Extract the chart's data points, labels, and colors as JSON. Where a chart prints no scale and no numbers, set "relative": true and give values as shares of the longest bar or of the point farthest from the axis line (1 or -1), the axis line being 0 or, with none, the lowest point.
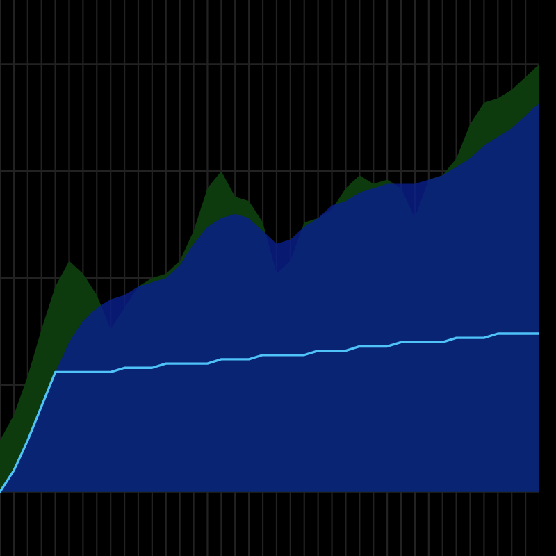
{
  "chart_data": {
    "type": "area",
    "relative": true,
    "grid": true,
    "categories": [
      null,
      null,
      null,
      null,
      null,
      null,
      null,
      null,
      null,
      null,
      null,
      null,
      null,
      null,
      null,
      null,
      null,
      null,
      null,
      null,
      null,
      null,
      null,
      null,
      null,
      null,
      null,
      null,
      null,
      null,
      null,
      null,
      null,
      null,
      null,
      null,
      null,
      null,
      null,
      null
    ],
    "series": [
      {
        "color": "#0d3b0d",
        "values": [
          0.12,
          0.18,
          0.27,
          0.38,
          0.48,
          0.54,
          0.51,
          0.46,
          0.38,
          0.43,
          0.48,
          0.5,
          0.51,
          0.54,
          0.61,
          0.71,
          0.75,
          0.69,
          0.68,
          0.63,
          0.51,
          0.54,
          0.63,
          0.64,
          0.66,
          0.71,
          0.74,
          0.72,
          0.73,
          0.71,
          0.64,
          0.73,
          0.74,
          0.78,
          0.86,
          0.91,
          0.92,
          0.94,
          0.97,
          1
        ]
      },
      {
        "color": "#0a1f8f",
        "values": [
          0,
          0.05,
          0.12,
          0.2,
          0.28,
          0.35,
          0.4,
          0.43,
          0.45,
          0.46,
          0.48,
          0.49,
          0.5,
          0.53,
          0.58,
          0.62,
          0.64,
          0.65,
          0.64,
          0.61,
          0.58,
          0.59,
          0.62,
          0.64,
          0.67,
          0.68,
          0.7,
          0.71,
          0.72,
          0.72,
          0.72,
          0.73,
          0.74,
          0.76,
          0.78,
          0.81,
          0.83,
          0.85,
          0.88,
          0.91
        ]
      },
      {
        "type": "line",
        "color": "#4fc3f7",
        "values": [
          0,
          0.05,
          0.12,
          0.2,
          0.28,
          0.28,
          0.28,
          0.28,
          0.28,
          0.29,
          0.29,
          0.29,
          0.3,
          0.3,
          0.3,
          0.3,
          0.31,
          0.31,
          0.31,
          0.32,
          0.32,
          0.32,
          0.32,
          0.33,
          0.33,
          0.33,
          0.34,
          0.34,
          0.34,
          0.35,
          0.35,
          0.35,
          0.35,
          0.36,
          0.36,
          0.36,
          0.37,
          0.37,
          0.37,
          0.37
        ]
      }
    ]
  }
}
